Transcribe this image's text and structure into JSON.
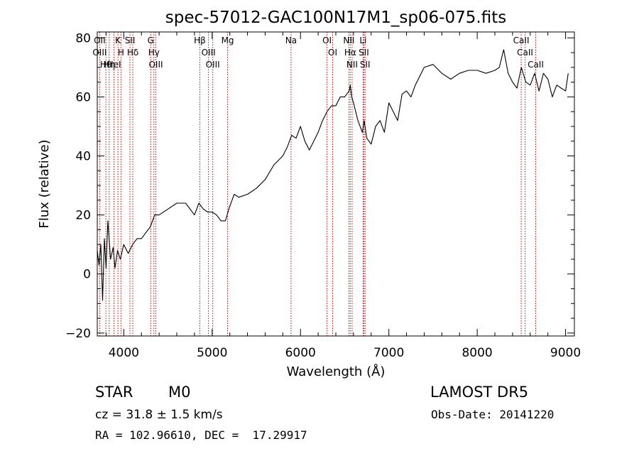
{
  "chart_data": {
    "type": "line",
    "title": "spec-57012-GAC100N17M1_sp06-075.fits",
    "xlabel": "Wavelength (Å)",
    "ylabel": "Flux (relative)",
    "xlim": [
      3700,
      9100
    ],
    "ylim": [
      -21,
      82
    ],
    "xticks": [
      4000,
      5000,
      6000,
      7000,
      8000,
      9000
    ],
    "yticks": [
      -20,
      0,
      20,
      40,
      60,
      80
    ],
    "grid": false,
    "series": [
      {
        "x": [
          3700,
          3720,
          3740,
          3760,
          3780,
          3800,
          3820,
          3850,
          3880,
          3900,
          3930,
          3960,
          4000,
          4050,
          4100,
          4150,
          4200,
          4250,
          4300,
          4350,
          4400,
          4500,
          4600,
          4700,
          4800,
          4850,
          4900,
          4950,
          5000,
          5050,
          5100,
          5150,
          5200,
          5250,
          5300,
          5400,
          5500,
          5600,
          5700,
          5800,
          5850,
          5900,
          5950,
          6000,
          6050,
          6100,
          6150,
          6200,
          6250,
          6300,
          6350,
          6400,
          6450,
          6500,
          6550,
          6563,
          6580,
          6600,
          6650,
          6700,
          6720,
          6750,
          6800,
          6850,
          6900,
          6950,
          7000,
          7050,
          7100,
          7150,
          7200,
          7250,
          7300,
          7400,
          7500,
          7600,
          7700,
          7800,
          7900,
          8000,
          8100,
          8200,
          8250,
          8300,
          8350,
          8400,
          8450,
          8500,
          8550,
          8600,
          8650,
          8700,
          8750,
          8800,
          8850,
          8900,
          8950,
          9000,
          9030
        ],
        "y": [
          8,
          3,
          10,
          -9,
          12,
          2,
          18,
          5,
          9,
          2,
          8,
          5,
          10,
          7,
          10,
          12,
          12,
          14,
          16,
          20,
          20,
          22,
          24,
          24,
          20,
          24,
          22,
          21,
          21,
          20,
          18,
          18,
          23,
          27,
          26,
          27,
          29,
          32,
          37,
          40,
          43,
          47,
          46,
          50,
          45,
          42,
          45,
          48,
          52,
          55,
          57,
          57,
          60,
          60,
          62,
          64,
          60,
          58,
          52,
          48,
          52,
          46,
          44,
          50,
          52,
          48,
          58,
          55,
          52,
          61,
          62,
          60,
          64,
          70,
          71,
          68,
          66,
          68,
          69,
          69,
          68,
          69,
          70,
          76,
          68,
          65,
          63,
          70,
          65,
          64,
          68,
          62,
          68,
          66,
          60,
          64,
          63,
          62,
          68
        ]
      }
    ],
    "lines": [
      {
        "label": "Hθ",
        "x": 3798
      },
      {
        "label": "OII",
        "x": 3727
      },
      {
        "label": "OIII",
        "x": 3727
      },
      {
        "label": "HeI",
        "x": 3889
      },
      {
        "label": "Hη",
        "x": 3835
      },
      {
        "label": "K",
        "x": 3934
      },
      {
        "label": "H",
        "x": 3968
      },
      {
        "label": "Hδ",
        "x": 4102
      },
      {
        "label": "SII",
        "x": 4070
      },
      {
        "label": "OIII",
        "x": 4363
      },
      {
        "label": "Hγ",
        "x": 4341
      },
      {
        "label": "G",
        "x": 4305
      },
      {
        "label": "OIII",
        "x": 4959
      },
      {
        "label": "OIII",
        "x": 5007
      },
      {
        "label": "Hβ",
        "x": 4861
      },
      {
        "label": "Mg",
        "x": 5175
      },
      {
        "label": "Na",
        "x": 5893
      },
      {
        "label": "OI",
        "x": 6300
      },
      {
        "label": "OI",
        "x": 6364
      },
      {
        "label": "Hα",
        "x": 6563
      },
      {
        "label": "NII",
        "x": 6548
      },
      {
        "label": "NII",
        "x": 6584
      },
      {
        "label": "SII",
        "x": 6717
      },
      {
        "label": "Li",
        "x": 6708
      },
      {
        "label": "SII",
        "x": 6731
      },
      {
        "label": "CaII",
        "x": 8542
      },
      {
        "label": "CaII",
        "x": 8498
      },
      {
        "label": "CaII",
        "x": 8662
      }
    ]
  },
  "info": {
    "object_type": "STAR",
    "subclass": "M0",
    "survey": "LAMOST DR5",
    "cz": "cz = 31.8 ± 1.5 km/s",
    "obs_date": "Obs-Date: 20141220",
    "coords": "RA = 102.96610, DEC =  17.29917"
  },
  "colors": {
    "axes": "#000000",
    "spectrum": "#000000",
    "line_markers": "#cc0000"
  }
}
